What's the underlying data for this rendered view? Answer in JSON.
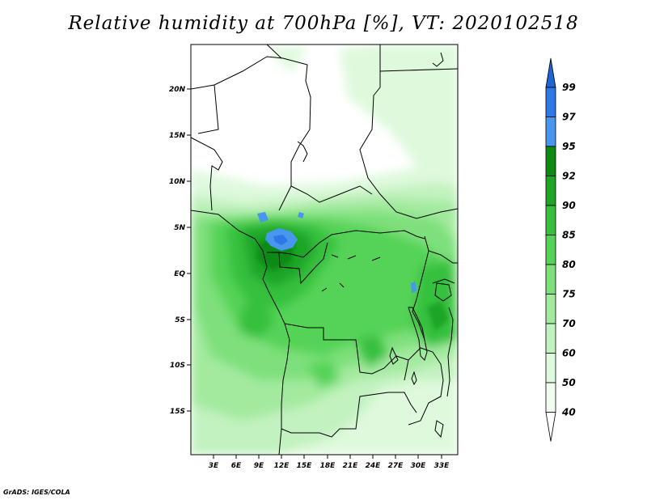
{
  "title": "Relative humidity at 700hPa [%], VT: 2020102518",
  "footer": "GrADS: IGES/COLA",
  "map": {
    "lat_labels": [
      "20N",
      "15N",
      "10N",
      "5N",
      "EQ",
      "5S",
      "10S",
      "15S"
    ],
    "lon_labels": [
      "3E",
      "6E",
      "9E",
      "12E",
      "15E",
      "18E",
      "21E",
      "24E",
      "27E",
      "30E",
      "33E"
    ]
  },
  "colorbar": {
    "levels": [
      "99",
      "97",
      "95",
      "92",
      "90",
      "85",
      "80",
      "75",
      "70",
      "60",
      "50",
      "40"
    ],
    "colors": [
      "#1e64d2",
      "#2e78e6",
      "#4796f0",
      "#0d8a12",
      "#1fa525",
      "#36c03d",
      "#55d356",
      "#7ee07c",
      "#a3ea9f",
      "#c2f2bf",
      "#def9dc",
      "#f2fdf1",
      "#ffffff"
    ]
  }
}
